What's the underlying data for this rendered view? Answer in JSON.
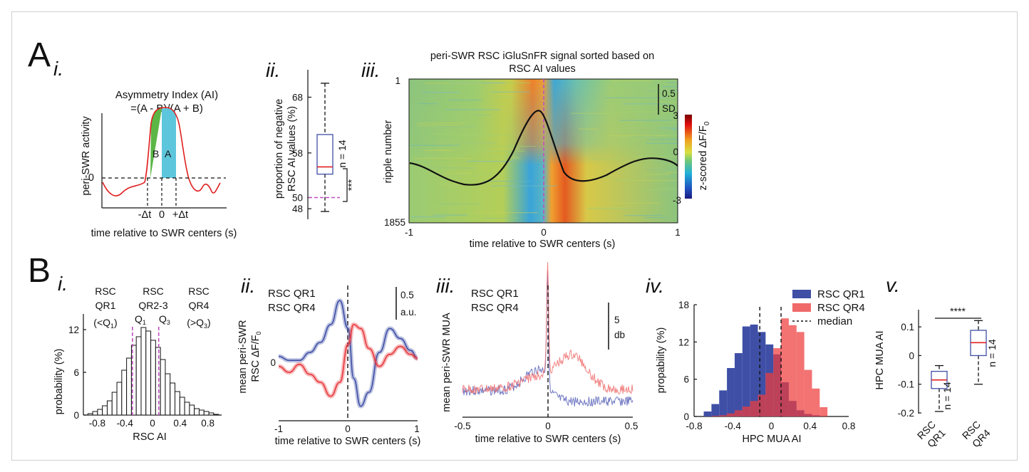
{
  "colors": {
    "qr1": "#3f4fa6",
    "qr4": "#e8383d",
    "green": "#5bb646",
    "cyan": "#5ec6dc",
    "magenta": "#c050c0",
    "red": "#e02020"
  },
  "panelA": {
    "letter": "A",
    "i": {
      "sub": "i.",
      "title1": "Asymmetry Index (AI)",
      "title2": "=(A - B)/(A + B)",
      "ylabel": "peri-SWR activity",
      "zero": "0",
      "labelB": "B",
      "labelA": "A",
      "tick_neg": "-Δt",
      "tick_zero": "0",
      "tick_pos": "+Δt",
      "xlabel": "time relative to SWR centers (s)"
    },
    "ii": {
      "sub": "ii.",
      "ylabel1": "proportion of negative",
      "ylabel2": "RSC AI values (%)",
      "n": "n = 14",
      "stars": "***"
    },
    "iii": {
      "sub": "iii.",
      "title1": "peri-SWR RSC iGluSnFR signal sorted based on",
      "title2": "RSC AI values",
      "ylabel": "ripple number",
      "xlabel": "time relative to SWR centers (s)",
      "scale1": "0.5",
      "scale2": "SD",
      "cb_label": "z-scored ΔF/F",
      "cb_sub": "0"
    }
  },
  "panelB": {
    "letter": "B",
    "i": {
      "sub": "i.",
      "qr1": [
        "RSC",
        "QR1",
        "(<Q",
        "1",
        ")"
      ],
      "qr23": [
        "RSC",
        "QR2-3"
      ],
      "qr4": [
        "RSC",
        "QR4",
        "(>Q",
        "3",
        ")"
      ],
      "q1": "Q",
      "q1sub": "1",
      "q3": "Q",
      "q3sub": "3",
      "ylabel": "probability (%)",
      "xlabel": "RSC AI"
    },
    "ii": {
      "sub": "ii.",
      "leg1": "RSC QR1",
      "leg4": "RSC QR4",
      "scale1": "0.5",
      "scale2": "a.u.",
      "ylabel1": "mean peri-SWR",
      "ylabel2": "RSC ΔF/F",
      "ylabel2sub": "0",
      "xlabel": "time relative to SWR centers (s)"
    },
    "iii": {
      "sub": "iii.",
      "leg1": "RSC QR1",
      "leg4": "RSC QR4",
      "scale1": "5",
      "scale2": "db",
      "ylabel": "mean peri-SWR MUA",
      "xlabel": "time relative to SWR centers (s)"
    },
    "iv": {
      "sub": "iv.",
      "leg1": "RSC QR1",
      "leg4": "RSC QR4",
      "leg_median": "median",
      "ylabel": "propability (%)",
      "xlabel": "HPC MUA AI"
    },
    "v": {
      "sub": "v.",
      "ylabel": "HPC MUA AI",
      "stars": "****",
      "n1": "n = 14",
      "n2": "n = 14",
      "cat1a": "RSC",
      "cat1b": "QR1",
      "cat2a": "RSC",
      "cat2b": "QR4"
    }
  },
  "chart_data": [
    {
      "type": "line",
      "panel": "Ai",
      "xlabel": "time relative to SWR centers (s)",
      "ylabel": "peri-SWR activity",
      "x_ticks": [
        "-Δt",
        "0",
        "+Δt"
      ],
      "y_ticks": [
        "0"
      ]
    },
    {
      "type": "box",
      "panel": "Aii",
      "ylabel": "proportion of negative RSC AI values (%)",
      "yticks": [
        48,
        50,
        58,
        68
      ],
      "ylim": [
        47,
        71
      ],
      "min": 47.5,
      "q1": 54.2,
      "median": 55.5,
      "q3": 61.3,
      "max": 70.5,
      "reference": 50,
      "n": 14
    },
    {
      "type": "heatmap",
      "panel": "Aiii",
      "ylabel": "ripple number",
      "xlabel": "time relative to SWR centers (s)",
      "x_ticks": [
        -1,
        0,
        1
      ],
      "y_ticks": [
        1,
        1855
      ],
      "colorbar_ticks": [
        3,
        0,
        -3
      ],
      "overlay_mean_trace": true
    },
    {
      "type": "bar",
      "panel": "Bi",
      "xlabel": "RSC AI",
      "ylabel": "probability (%)",
      "x_ticks": [
        -0.8,
        -0.4,
        0,
        0.4,
        0.8
      ],
      "y_ticks": [
        0,
        6,
        12
      ],
      "ylim": [
        0,
        14
      ],
      "bin_centers": [
        -0.9,
        -0.83,
        -0.76,
        -0.69,
        -0.62,
        -0.55,
        -0.48,
        -0.41,
        -0.34,
        -0.27,
        -0.2,
        -0.13,
        -0.06,
        0.01,
        0.08,
        0.15,
        0.22,
        0.29,
        0.36,
        0.43,
        0.5,
        0.57,
        0.64,
        0.71,
        0.78,
        0.85,
        0.92
      ],
      "values": [
        0.2,
        0.5,
        0.8,
        1.3,
        2.0,
        3.2,
        4.6,
        6.3,
        8.0,
        9.8,
        11.0,
        12.3,
        11.8,
        10.5,
        9.5,
        7.8,
        5.8,
        4.5,
        3.3,
        2.5,
        1.8,
        1.4,
        0.9,
        0.7,
        0.5,
        0.3,
        0.1
      ],
      "q1": -0.29,
      "q3": 0.09
    },
    {
      "type": "line",
      "panel": "Bii",
      "xlabel": "time relative to SWR centers (s)",
      "ylabel": "mean peri-SWR RSC ΔF/F0",
      "x_ticks": [
        -1,
        0,
        1
      ],
      "y_ticks": [
        0
      ],
      "series": [
        {
          "name": "RSC QR1",
          "x": [
            -1,
            -0.85,
            -0.7,
            -0.55,
            -0.4,
            -0.25,
            -0.12,
            0,
            0.08,
            0.18,
            0.3,
            0.45,
            0.6,
            0.75,
            0.9,
            1
          ],
          "y": [
            0.15,
            0.05,
            0.05,
            0.25,
            0.5,
            0.95,
            1.55,
            0.85,
            -0.4,
            -1.1,
            -0.75,
            0.25,
            0.85,
            0.6,
            0.3,
            0.1
          ]
        },
        {
          "name": "RSC QR4",
          "x": [
            -1,
            -0.85,
            -0.7,
            -0.55,
            -0.4,
            -0.25,
            -0.12,
            0,
            0.08,
            0.18,
            0.3,
            0.45,
            0.6,
            0.75,
            0.9,
            1
          ],
          "y": [
            -0.1,
            -0.25,
            -0.05,
            -0.3,
            -0.5,
            -0.85,
            -0.5,
            0.45,
            0.95,
            0.85,
            0.35,
            -0.1,
            0.2,
            0.4,
            0.2,
            0.1
          ]
        }
      ]
    },
    {
      "type": "line",
      "panel": "Biii",
      "xlabel": "time relative to SWR centers (s)",
      "ylabel": "mean peri-SWR MUA",
      "x_ticks": [
        -0.5,
        0,
        0.5
      ],
      "series": [
        {
          "name": "RSC QR1"
        },
        {
          "name": "RSC QR4"
        }
      ]
    },
    {
      "type": "histogram",
      "panel": "Biv",
      "xlabel": "HPC MUA AI",
      "ylabel": "propability (%)",
      "x_ticks": [
        -0.8,
        -0.4,
        0,
        0.4,
        0.8
      ],
      "y_ticks": [
        0,
        6,
        12,
        18
      ],
      "ylim": [
        0,
        18
      ],
      "bin_edges": [
        -0.7,
        -0.62,
        -0.54,
        -0.46,
        -0.38,
        -0.3,
        -0.22,
        -0.14,
        -0.06,
        0.02,
        0.1,
        0.18,
        0.26,
        0.34,
        0.42,
        0.5,
        0.58
      ],
      "series": [
        {
          "name": "RSC QR1",
          "values": [
            0.8,
            2.0,
            4.2,
            7.8,
            10.2,
            14.5,
            14.8,
            13.6,
            11.6,
            10.0,
            5.5,
            2.5,
            1.0,
            0.4,
            0.2,
            0.0
          ],
          "median": -0.12
        },
        {
          "name": "RSC QR4",
          "values": [
            0.0,
            0.1,
            0.2,
            0.5,
            1.0,
            1.6,
            2.5,
            3.5,
            7.0,
            11.0,
            15.8,
            14.7,
            13.6,
            7.5,
            4.5,
            1.5
          ],
          "median": 0.1
        }
      ]
    },
    {
      "type": "box",
      "panel": "Bv",
      "ylabel": "HPC MUA AI",
      "yticks": [
        -0.2,
        -0.1,
        0,
        0.1
      ],
      "ylim": [
        -0.2,
        0.16
      ],
      "categories": [
        "RSC QR1",
        "RSC QR4"
      ],
      "boxes": [
        {
          "min": -0.195,
          "q1": -0.115,
          "median": -0.085,
          "q3": -0.055,
          "max": -0.035
        },
        {
          "min": -0.1,
          "q1": 0.0,
          "median": 0.045,
          "q3": 0.088,
          "max": 0.122
        }
      ],
      "n": [
        14,
        14
      ]
    }
  ]
}
